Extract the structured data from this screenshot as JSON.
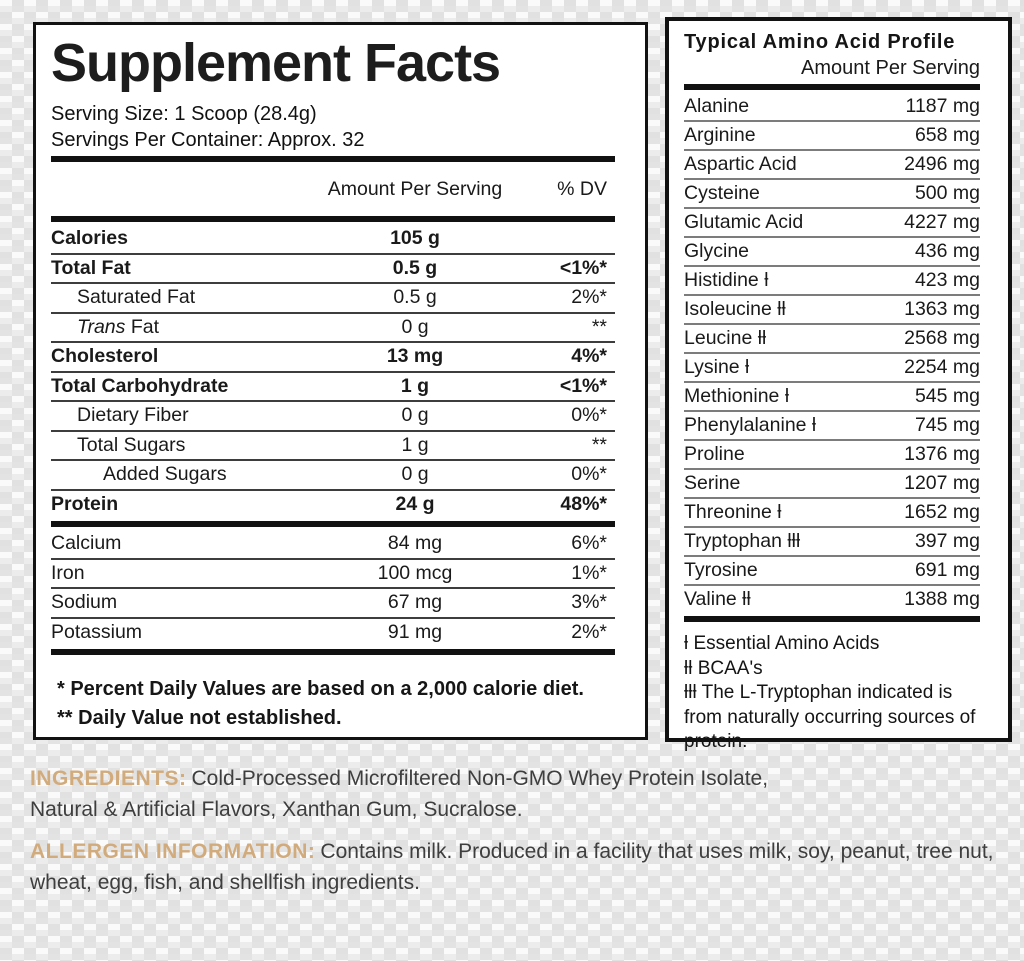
{
  "colors": {
    "accent_gold": "#d2ab7c",
    "panel_background": "#ffffff",
    "text_dark": "#1a1a1a",
    "body_text": "#3e3e3e",
    "checker_gray": "#e4e4e4",
    "checker_light": "#fafafa"
  },
  "supplement_facts": {
    "title": "Supplement Facts",
    "serving_size": "Serving Size: 1 Scoop (28.4g)",
    "servings_per_container": "Servings Per Container: Approx. 32",
    "col_amount": "Amount Per Serving",
    "col_dv": "% DV",
    "rows": [
      {
        "label": "Calories",
        "amount": "105 g",
        "dv": "",
        "bold": true,
        "indent": 0
      },
      {
        "label": "Total Fat",
        "amount": "0.5 g",
        "dv": "<1%*",
        "bold": true,
        "indent": 0
      },
      {
        "label": "Saturated Fat",
        "amount": "0.5 g",
        "dv": "2%*",
        "bold": false,
        "indent": 1
      },
      {
        "label": "Trans Fat",
        "amount": "0 g",
        "dv": "**",
        "bold": false,
        "indent": 1,
        "italic_first": true
      },
      {
        "label": "Cholesterol",
        "amount": "13 mg",
        "dv": "4%*",
        "bold": true,
        "indent": 0
      },
      {
        "label": "Total Carbohydrate",
        "amount": "1 g",
        "dv": "<1%*",
        "bold": true,
        "indent": 0
      },
      {
        "label": "Dietary Fiber",
        "amount": "0 g",
        "dv": "0%*",
        "bold": false,
        "indent": 1
      },
      {
        "label": "Total Sugars",
        "amount": "1 g",
        "dv": "**",
        "bold": false,
        "indent": 1
      },
      {
        "label": "Added Sugars",
        "amount": "0 g",
        "dv": "0%*",
        "bold": false,
        "indent": 2
      },
      {
        "label": "Protein",
        "amount": "24 g",
        "dv": "48%*",
        "bold": true,
        "indent": 0,
        "thick_after": true
      },
      {
        "label": "Calcium",
        "amount": "84 mg",
        "dv": "6%*",
        "bold": false,
        "indent": 0
      },
      {
        "label": "Iron",
        "amount": "100 mcg",
        "dv": "1%*",
        "bold": false,
        "indent": 0
      },
      {
        "label": "Sodium",
        "amount": "67 mg",
        "dv": "3%*",
        "bold": false,
        "indent": 0
      },
      {
        "label": "Potassium",
        "amount": "91 mg",
        "dv": "2%*",
        "bold": false,
        "indent": 0,
        "thick_after": true
      }
    ],
    "footnotes": [
      "* Percent Daily Values are based on a 2,000 calorie diet.",
      "** Daily Value not established."
    ]
  },
  "amino_profile": {
    "title": "Typical Amino Acid Profile",
    "subtitle": "Amount Per Serving",
    "rows": [
      {
        "name": "Alanine",
        "amount": "1187 mg"
      },
      {
        "name": "Arginine",
        "amount": "658 mg"
      },
      {
        "name": "Aspartic Acid",
        "amount": "2496 mg"
      },
      {
        "name": "Cysteine",
        "amount": "500 mg"
      },
      {
        "name": "Glutamic Acid",
        "amount": "4227 mg"
      },
      {
        "name": "Glycine",
        "amount": "436 mg"
      },
      {
        "name": "Histidine ƚ",
        "amount": "423 mg"
      },
      {
        "name": "Isoleucine ƚƚ",
        "amount": "1363 mg"
      },
      {
        "name": "Leucine ƚƚ",
        "amount": "2568 mg"
      },
      {
        "name": "Lysine ƚ",
        "amount": "2254 mg"
      },
      {
        "name": "Methionine ƚ",
        "amount": "545 mg"
      },
      {
        "name": "Phenylalanine ƚ",
        "amount": "745 mg"
      },
      {
        "name": "Proline",
        "amount": "1376 mg"
      },
      {
        "name": "Serine",
        "amount": "1207 mg"
      },
      {
        "name": "Threonine ƚ",
        "amount": "1652 mg"
      },
      {
        "name": "Tryptophan ƚƚƚ",
        "amount": "397 mg"
      },
      {
        "name": "Tyrosine",
        "amount": "691 mg"
      },
      {
        "name": "Valine ƚƚ",
        "amount": "1388 mg",
        "thick_after": true
      }
    ],
    "footnotes": [
      "ƚ Essential Amino Acids",
      "ƚƚ BCAA's",
      "ƚƚƚ The L-Tryptophan indicated is from naturally occurring sources of protein."
    ]
  },
  "ingredients": {
    "label": "INGREDIENTS:",
    "text": "Cold-Processed Microfiltered Non-GMO Whey Protein Isolate, Natural & Artificial Flavors, Xanthan Gum, Sucralose."
  },
  "allergen": {
    "label": "ALLERGEN INFORMATION:",
    "text": "Contains milk. Produced in a facility that uses milk, soy, peanut, tree nut, wheat, egg, fish, and shellfish ingredients."
  }
}
